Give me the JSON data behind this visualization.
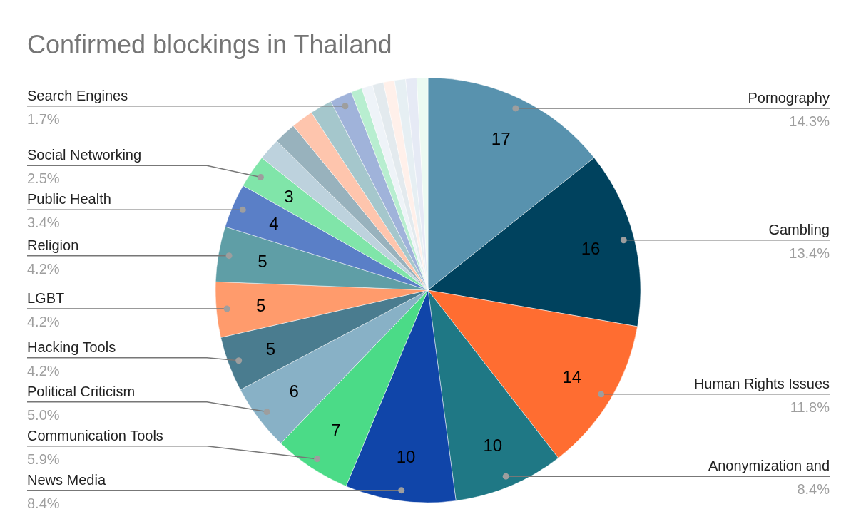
{
  "chart_data": {
    "type": "pie",
    "title": "Confirmed blockings in Thailand",
    "categories": [
      "Pornography",
      "Gambling",
      "Human Rights Issues",
      "Anonymization and",
      "News Media",
      "Communication Tools",
      "Political Criticism",
      "Hacking Tools",
      "LGBT",
      "Religion",
      "Public Health",
      "Social Networking",
      null,
      null,
      null,
      null,
      "Search Engines",
      null,
      null,
      null,
      null,
      null,
      null,
      null
    ],
    "values": [
      17,
      16,
      14,
      10,
      10,
      7,
      6,
      5,
      5,
      5,
      4,
      3,
      2,
      2,
      2,
      2,
      2,
      1,
      1,
      1,
      1,
      1,
      1,
      1
    ],
    "annotations": [
      "14.3%",
      "13.4%",
      "11.8%",
      "8.4%",
      "8.4%",
      "5.9%",
      "5.0%",
      "4.2%",
      "4.2%",
      "4.2%",
      "3.4%",
      "2.5%",
      "1.7%"
    ],
    "value_labels": [
      "17",
      "16",
      "14",
      "10",
      "10",
      "7",
      "6",
      "5",
      "5",
      "5",
      "4",
      "3",
      null,
      null,
      null,
      null,
      null,
      null,
      null,
      null,
      null,
      null,
      null,
      null
    ],
    "colors": [
      "#5892ae",
      "#00425e",
      "#ff6d31",
      "#1f7885",
      "#1045a9",
      "#4bdb87",
      "#88b1c6",
      "#4a7c8f",
      "#ff9b6c",
      "#5f9ea6",
      "#5a7fc7",
      "#80e5a9",
      "#bdd2dd",
      "#98b2bd",
      "#fec5ad",
      "#a5c7cc",
      "#a0b3da",
      "#b8eed0",
      "#eef3f8",
      "#e3eaee",
      "#fff0ea",
      "#e6eff3",
      "#e6eaf5",
      "#ecfaf2"
    ]
  }
}
